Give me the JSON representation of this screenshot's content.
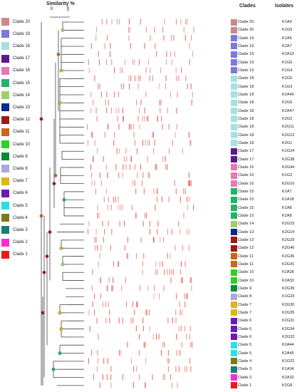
{
  "header": {
    "similarity_label": "Similarity %",
    "scale_ticks": [
      "50",
      "100"
    ],
    "clades_label": "Clades",
    "isolates_label": "Isolates"
  },
  "legend": [
    {
      "label": "Clade 20",
      "color": "#c98a8a"
    },
    {
      "label": "Clade 19",
      "color": "#7a7adc"
    },
    {
      "label": "Clade 18",
      "color": "#a8e0e0"
    },
    {
      "label": "Clade 17",
      "color": "#5a1a8a"
    },
    {
      "label": "Clade 16",
      "color": "#e67ab4"
    },
    {
      "label": "Clade 15",
      "color": "#23b26a"
    },
    {
      "label": "Clade 14",
      "color": "#9ed06a"
    },
    {
      "label": "Clade 13",
      "color": "#0a2a8a"
    },
    {
      "label": "Clade 12",
      "color": "#a01818"
    },
    {
      "label": "Clade 11",
      "color": "#c8661a"
    },
    {
      "label": "Clade 10",
      "color": "#2ad02a"
    },
    {
      "label": "Clade 9",
      "color": "#0a8a3a"
    },
    {
      "label": "Clade 8",
      "color": "#a8a8dc"
    },
    {
      "label": "Clade 7",
      "color": "#e0b418"
    },
    {
      "label": "Clade 6",
      "color": "#6a1ab4"
    },
    {
      "label": "Clade 5",
      "color": "#2ae0e6"
    },
    {
      "label": "Clade 4",
      "color": "#7a7a1a"
    },
    {
      "label": "Clade 3",
      "color": "#1a7a7a"
    },
    {
      "label": "Clade 2",
      "color": "#ff2ad0"
    },
    {
      "label": "Clade 1",
      "color": "#ee1a1a"
    }
  ],
  "rows": [
    {
      "clade": "Clade 20",
      "isolate": "K1A9",
      "color": "#c98a8a"
    },
    {
      "clade": "Clade 20",
      "isolate": "K1G5",
      "color": "#c98a8a"
    },
    {
      "clade": "Clade 19",
      "isolate": "K1A6",
      "color": "#7a7adc"
    },
    {
      "clade": "Clade 19",
      "isolate": "K2A7",
      "color": "#7a7adc"
    },
    {
      "clade": "Clade 19",
      "isolate": "K2A10",
      "color": "#7a7adc"
    },
    {
      "clade": "Clade 19",
      "isolate": "K1G6",
      "color": "#7a7adc"
    },
    {
      "clade": "Clade 19",
      "isolate": "K1G4",
      "color": "#7a7adc"
    },
    {
      "clade": "Clade 18",
      "isolate": "K2G5",
      "color": "#a8e0e0"
    },
    {
      "clade": "Clade 18",
      "isolate": "K1G3",
      "color": "#a8e0e0"
    },
    {
      "clade": "Clade 18",
      "isolate": "K2A46",
      "color": "#a8e0e0"
    },
    {
      "clade": "Clade 18",
      "isolate": "K2G6",
      "color": "#a8e0e0"
    },
    {
      "clade": "Clade 18",
      "isolate": "K2A47",
      "color": "#a8e0e0"
    },
    {
      "clade": "Clade 18",
      "isolate": "K2G2",
      "color": "#a8e0e0"
    },
    {
      "clade": "Clade 18",
      "isolate": "K2G11",
      "color": "#a8e0e0"
    },
    {
      "clade": "Clade 18",
      "isolate": "K2G12",
      "color": "#a8e0e0"
    },
    {
      "clade": "Clade 18",
      "isolate": "K2G1",
      "color": "#a8e0e0"
    },
    {
      "clade": "Clade 17",
      "isolate": "K1G24",
      "color": "#5a1a8a"
    },
    {
      "clade": "Clade 17",
      "isolate": "K2G38",
      "color": "#5a1a8a"
    },
    {
      "clade": "Clade 16",
      "isolate": "K2G44",
      "color": "#e67ab4"
    },
    {
      "clade": "Clade 16",
      "isolate": "K1G2",
      "color": "#e67ab4"
    },
    {
      "clade": "Clade 16",
      "isolate": "K2G10",
      "color": "#e67ab4"
    },
    {
      "clade": "Clade 15",
      "isolate": "K1A7",
      "color": "#23b26a"
    },
    {
      "clade": "Clade 15",
      "isolate": "K1A18",
      "color": "#23b26a"
    },
    {
      "clade": "Clade 15",
      "isolate": "K1A8",
      "color": "#23b26a"
    },
    {
      "clade": "Clade 15",
      "isolate": "K2A8",
      "color": "#23b26a"
    },
    {
      "clade": "Clade 14",
      "isolate": "K2G15",
      "color": "#9ed06a"
    },
    {
      "clade": "Clade 13",
      "isolate": "K2G14",
      "color": "#0a2a8a"
    },
    {
      "clade": "Clade 12",
      "isolate": "K2G29",
      "color": "#a01818"
    },
    {
      "clade": "Clade 12",
      "isolate": "K2G46",
      "color": "#a01818"
    },
    {
      "clade": "Clade 11",
      "isolate": "K2G36",
      "color": "#c8661a"
    },
    {
      "clade": "Clade 11",
      "isolate": "K2G41",
      "color": "#c8661a"
    },
    {
      "clade": "Clade 10",
      "isolate": "K2A28",
      "color": "#2ad02a"
    },
    {
      "clade": "Clade 10",
      "isolate": "K2A33",
      "color": "#2ad02a"
    },
    {
      "clade": "Clade 9",
      "isolate": "K2G39",
      "color": "#0a8a3a"
    },
    {
      "clade": "Clade 8",
      "isolate": "K1G23",
      "color": "#a8a8dc"
    },
    {
      "clade": "Clade 7",
      "isolate": "K2G30",
      "color": "#e0b418"
    },
    {
      "clade": "Clade 7",
      "isolate": "K2G35",
      "color": "#e0b418"
    },
    {
      "clade": "Clade 6",
      "isolate": "K2G31",
      "color": "#6a1ab4"
    },
    {
      "clade": "Clade 6",
      "isolate": "K2G34",
      "color": "#6a1ab4"
    },
    {
      "clade": "Clade 6",
      "isolate": "K2G32",
      "color": "#6a1ab4"
    },
    {
      "clade": "Clade 5",
      "isolate": "K2A44",
      "color": "#2ae0e6"
    },
    {
      "clade": "Clade 5",
      "isolate": "K2A45",
      "color": "#2ae0e6"
    },
    {
      "clade": "Clade 4",
      "isolate": "K1G22",
      "color": "#7a7a1a"
    },
    {
      "clade": "Clade 3",
      "isolate": "K1A34",
      "color": "#1a7a7a"
    },
    {
      "clade": "Clade 2",
      "isolate": "K2A32",
      "color": "#ff2ad0"
    },
    {
      "clade": "Clade 1",
      "isolate": "K2G8",
      "color": "#ee1a1a"
    }
  ],
  "band_color": "#e8443c",
  "tree_color": "#444444"
}
